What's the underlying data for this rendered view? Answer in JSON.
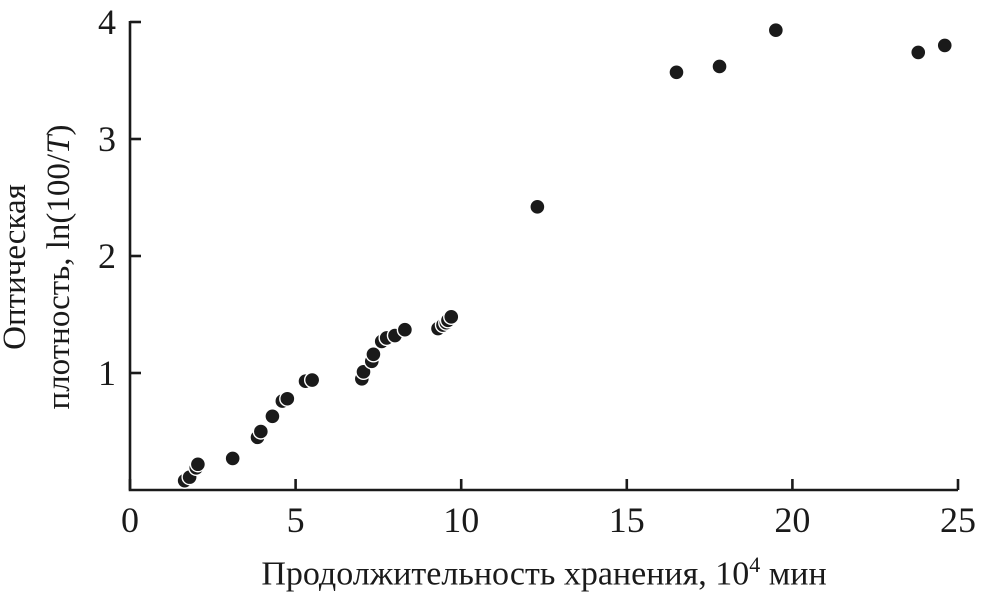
{
  "chart_data": {
    "type": "scatter",
    "title": "",
    "ylabel_line1": "Оптическая",
    "ylabel_line2_before": "плотность, ln(100/",
    "ylabel_line2_italic": "T",
    "ylabel_line2_after": ")",
    "xlabel_main": "Продолжительность хранения, 10",
    "xlabel_sup": "4",
    "xlabel_after": " мин",
    "xlim": [
      0,
      25
    ],
    "ylim": [
      0,
      4
    ],
    "xticks": [
      0,
      5,
      10,
      15,
      20,
      25
    ],
    "yticks": [
      1,
      2,
      3,
      4
    ],
    "grid": false,
    "legend": false,
    "axis_color": "#1a1a1a",
    "marker_color": "#1a1a1a",
    "marker_radius": 7.5,
    "points": [
      [
        1.65,
        0.08
      ],
      [
        1.8,
        0.11
      ],
      [
        2.0,
        0.19
      ],
      [
        2.05,
        0.22
      ],
      [
        3.1,
        0.27
      ],
      [
        3.85,
        0.45
      ],
      [
        3.95,
        0.5
      ],
      [
        4.3,
        0.63
      ],
      [
        4.6,
        0.76
      ],
      [
        4.75,
        0.78
      ],
      [
        5.3,
        0.93
      ],
      [
        5.5,
        0.94
      ],
      [
        7.0,
        0.95
      ],
      [
        7.05,
        1.01
      ],
      [
        7.3,
        1.1
      ],
      [
        7.35,
        1.16
      ],
      [
        7.6,
        1.27
      ],
      [
        7.75,
        1.3
      ],
      [
        8.0,
        1.32
      ],
      [
        8.3,
        1.37
      ],
      [
        9.3,
        1.38
      ],
      [
        9.45,
        1.41
      ],
      [
        9.55,
        1.43
      ],
      [
        9.6,
        1.45
      ],
      [
        9.7,
        1.48
      ],
      [
        12.3,
        2.42
      ],
      [
        16.5,
        3.57
      ],
      [
        17.8,
        3.62
      ],
      [
        19.5,
        3.93
      ],
      [
        23.8,
        3.74
      ],
      [
        24.6,
        3.8
      ]
    ]
  }
}
